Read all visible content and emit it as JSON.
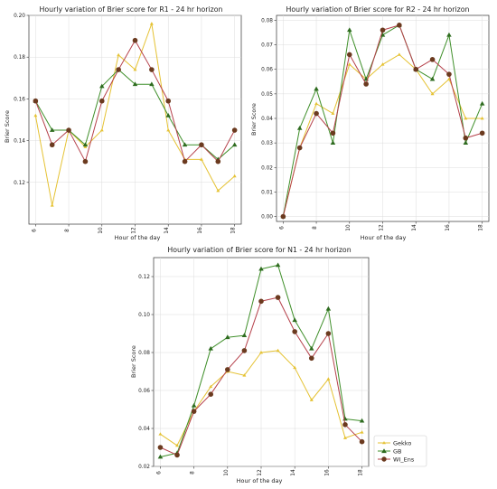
{
  "colors": {
    "Gekko": "#e5c233",
    "GB": "#3f8f2a",
    "WI_Ens": "#b5404a",
    "GB_marker": "#2e6b1f",
    "WI_Ens_marker": "#6b3a1f"
  },
  "legend": [
    "Gekko",
    "GB",
    "WI_Ens"
  ],
  "chart_data": [
    {
      "type": "line",
      "title": "Hourly variation of Brier score for R1 - 24 hr horizon",
      "xlabel": "Hour of the day",
      "ylabel": "Brier Score",
      "xlim": [
        5.6,
        18.4
      ],
      "ylim": [
        0.1,
        0.2
      ],
      "xticks": [
        6,
        8,
        10,
        12,
        14,
        16,
        18
      ],
      "yticks": [
        0.12,
        0.14,
        0.16,
        0.18,
        0.2
      ],
      "ytick_labels": [
        "0.12",
        "0.14",
        "0.16",
        "0.18",
        "0.20"
      ],
      "grid": true,
      "x": [
        6,
        7,
        8,
        9,
        10,
        11,
        12,
        13,
        14,
        15,
        16,
        17,
        18
      ],
      "series": [
        {
          "name": "Gekko",
          "values": [
            0.152,
            0.109,
            0.145,
            0.137,
            0.145,
            0.181,
            0.174,
            0.196,
            0.145,
            0.131,
            0.131,
            0.116,
            0.123
          ]
        },
        {
          "name": "GB",
          "values": [
            0.159,
            0.145,
            0.145,
            0.138,
            0.166,
            0.174,
            0.167,
            0.167,
            0.152,
            0.138,
            0.138,
            0.131,
            0.138
          ]
        },
        {
          "name": "WI_Ens",
          "values": [
            0.159,
            0.138,
            0.145,
            0.13,
            0.159,
            0.174,
            0.188,
            0.174,
            0.159,
            0.13,
            0.138,
            0.13,
            0.145
          ]
        }
      ]
    },
    {
      "type": "line",
      "title": "Hourly variation of Brier score for R2 - 24 hr horizon",
      "xlabel": "Hour of the day",
      "ylabel": "Brier Score",
      "xlim": [
        5.6,
        18.4
      ],
      "ylim": [
        -0.002,
        0.082
      ],
      "xticks": [
        6,
        8,
        10,
        12,
        14,
        16,
        18
      ],
      "yticks": [
        0.0,
        0.01,
        0.02,
        0.03,
        0.04,
        0.05,
        0.06,
        0.07,
        0.08
      ],
      "ytick_labels": [
        "0.00",
        "0.01",
        "0.02",
        "0.03",
        "0.04",
        "0.05",
        "0.06",
        "0.07",
        "0.08"
      ],
      "grid": true,
      "x": [
        6,
        7,
        8,
        9,
        10,
        11,
        12,
        13,
        14,
        15,
        16,
        17,
        18
      ],
      "series": [
        {
          "name": "Gekko",
          "values": [
            0.0,
            0.028,
            0.046,
            0.042,
            0.062,
            0.056,
            0.062,
            0.066,
            0.06,
            0.05,
            0.056,
            0.04,
            0.04
          ]
        },
        {
          "name": "GB",
          "values": [
            0.0,
            0.036,
            0.052,
            0.03,
            0.076,
            0.056,
            0.074,
            0.078,
            0.06,
            0.056,
            0.074,
            0.03,
            0.046
          ]
        },
        {
          "name": "WI_Ens",
          "values": [
            0.0,
            0.028,
            0.042,
            0.034,
            0.066,
            0.054,
            0.076,
            0.078,
            0.06,
            0.064,
            0.058,
            0.032,
            0.034
          ]
        }
      ]
    },
    {
      "type": "line",
      "title": "Hourly variation of Brier score for N1 - 24 hr horizon",
      "xlabel": "Hour of the day",
      "ylabel": "Brier Score",
      "xlim": [
        5.6,
        18.4
      ],
      "ylim": [
        0.02,
        0.13
      ],
      "xticks": [
        6,
        8,
        10,
        12,
        14,
        16,
        18
      ],
      "yticks": [
        0.02,
        0.04,
        0.06,
        0.08,
        0.1,
        0.12
      ],
      "ytick_labels": [
        "0.02",
        "0.04",
        "0.06",
        "0.08",
        "0.10",
        "0.12"
      ],
      "grid": true,
      "legend_position": "bottom-right",
      "x": [
        6,
        7,
        8,
        9,
        10,
        11,
        12,
        13,
        14,
        15,
        16,
        17,
        18
      ],
      "series": [
        {
          "name": "Gekko",
          "values": [
            0.037,
            0.031,
            0.049,
            0.062,
            0.07,
            0.068,
            0.08,
            0.081,
            0.072,
            0.055,
            0.066,
            0.035,
            0.038
          ]
        },
        {
          "name": "GB",
          "values": [
            0.025,
            0.027,
            0.052,
            0.082,
            0.088,
            0.089,
            0.124,
            0.126,
            0.097,
            0.082,
            0.103,
            0.045,
            0.044
          ]
        },
        {
          "name": "WI_Ens",
          "values": [
            0.03,
            0.026,
            0.049,
            0.058,
            0.071,
            0.081,
            0.107,
            0.109,
            0.091,
            0.077,
            0.09,
            0.042,
            0.033
          ]
        }
      ]
    }
  ]
}
